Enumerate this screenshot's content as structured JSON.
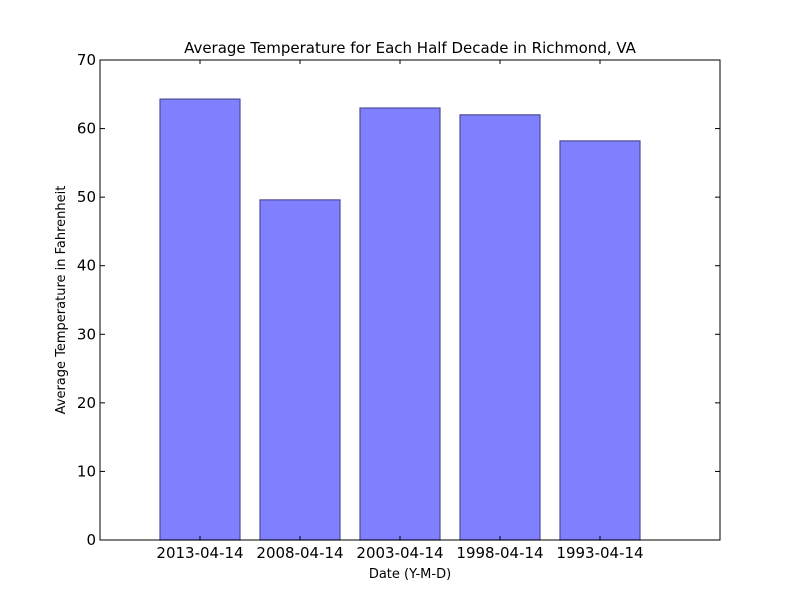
{
  "chart_data": {
    "type": "bar",
    "title": "Average Temperature for Each Half Decade in Richmond, VA",
    "xlabel": "Date (Y-M-D)",
    "ylabel": "Average Temperature in Fahrenheit",
    "categories": [
      "2013-04-14",
      "2008-04-14",
      "2003-04-14",
      "1998-04-14",
      "1993-04-14"
    ],
    "values": [
      64.3,
      49.6,
      63.0,
      62.0,
      58.2
    ],
    "ylim": [
      0,
      70
    ],
    "yticks": [
      "0",
      "10",
      "20",
      "30",
      "40",
      "50",
      "60",
      "70"
    ],
    "grid": false,
    "legend": false,
    "bar_color": "#8080ff",
    "bar_edge_color": "#4d4d99"
  }
}
